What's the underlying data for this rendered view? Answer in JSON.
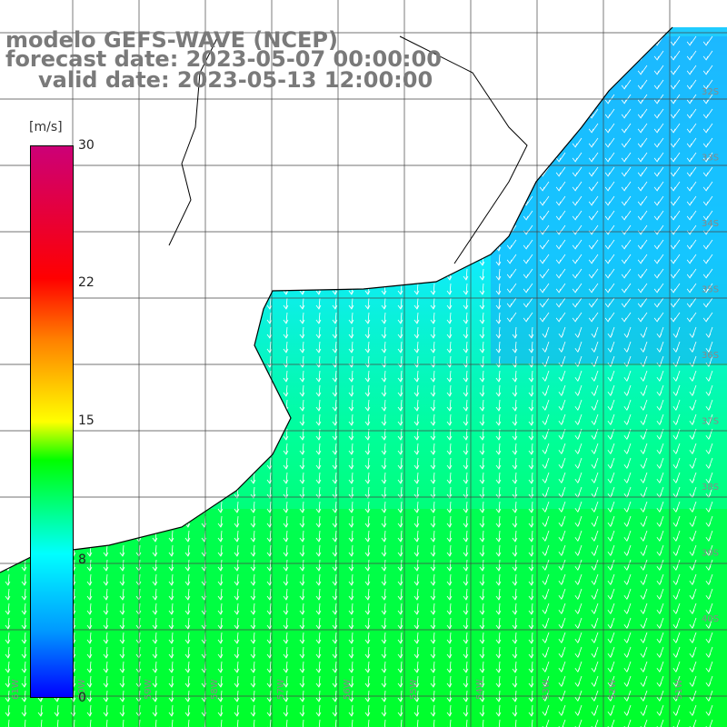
{
  "header": {
    "model": "modelo GEFS-WAVE (NCEP)",
    "forecast": "forecast date: 2023-05-07 00:00:00",
    "valid": "valid date: 2023-05-13 12:00:00"
  },
  "colorbar": {
    "unit": "[m/s]",
    "ticks": [
      "30",
      "22",
      "15",
      "8",
      "0"
    ],
    "tick_values": [
      30,
      22,
      15,
      8,
      0
    ],
    "range": [
      0,
      30
    ]
  },
  "map": {
    "lat_labels": [
      "32S",
      "33S",
      "34S",
      "35S",
      "36S",
      "37S",
      "38S",
      "39S",
      "40S"
    ],
    "lon_labels": [
      "61W",
      "60W",
      "59W",
      "58W",
      "57W",
      "56W",
      "55W",
      "54W",
      "53W",
      "52W",
      "51W"
    ],
    "colors": {
      "land": "#ffffff",
      "coast": "#000000",
      "grid": "#444444",
      "arrow": "#ffffff"
    }
  }
}
